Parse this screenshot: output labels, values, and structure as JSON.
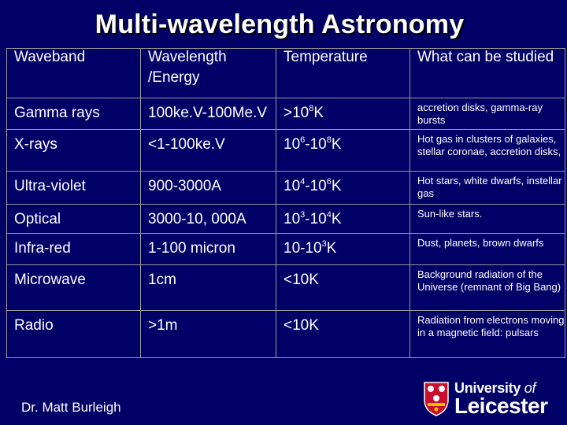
{
  "title": "Multi-wavelength Astronomy",
  "table": {
    "headers": {
      "waveband": "Waveband",
      "wavelength_line1": "Wavelength",
      "wavelength_line2": "/Energy",
      "temperature": "Temperature",
      "studied": "What can be studied"
    },
    "rows": [
      {
        "band": "Gamma rays",
        "wavelength": "100ke.V-100Me.V",
        "t_pre": ">10",
        "t_exp1": "8",
        "t_mid": "K",
        "t_exp2": "",
        "t_post": "",
        "studied": "accretion disks, gamma-ray bursts"
      },
      {
        "band": "X-rays",
        "wavelength": "<1-100ke.V",
        "t_pre": "10",
        "t_exp1": "6",
        "t_mid": "-10",
        "t_exp2": "8",
        "t_post": "K",
        "studied": "Hot gas in clusters of galaxies, stellar coronae, accretion disks,"
      },
      {
        "band": "Ultra-violet",
        "wavelength": "900-3000A",
        "t_pre": "10",
        "t_exp1": "4",
        "t_mid": "-10",
        "t_exp2": "6",
        "t_post": "K",
        "studied": "Hot stars, white dwarfs, instellar gas"
      },
      {
        "band": "Optical",
        "wavelength": "3000-10, 000A",
        "t_pre": "10",
        "t_exp1": "3",
        "t_mid": "-10",
        "t_exp2": "4",
        "t_post": "K",
        "studied": "Sun-like stars."
      },
      {
        "band": "Infra-red",
        "wavelength": "1-100 micron",
        "t_pre": "10-10",
        "t_exp1": "3",
        "t_mid": "K",
        "t_exp2": "",
        "t_post": "",
        "studied": "Dust, planets, brown dwarfs"
      },
      {
        "band": "Microwave",
        "wavelength": "1cm",
        "t_pre": "<10K",
        "t_exp1": "",
        "t_mid": "",
        "t_exp2": "",
        "t_post": "",
        "studied": "Background radiation of the Universe (remnant of Big Bang)"
      },
      {
        "band": "Radio",
        "wavelength": ">1m",
        "t_pre": "<10K",
        "t_exp1": "",
        "t_mid": "",
        "t_exp2": "",
        "t_post": "",
        "studied": "Radiation from electrons moving in a magnetic field: pulsars"
      }
    ]
  },
  "author": "Dr. Matt Burleigh",
  "logo": {
    "line1_a": "University",
    "line1_b": "of",
    "line2": "Leicester",
    "crest_color": "#c8102e"
  }
}
